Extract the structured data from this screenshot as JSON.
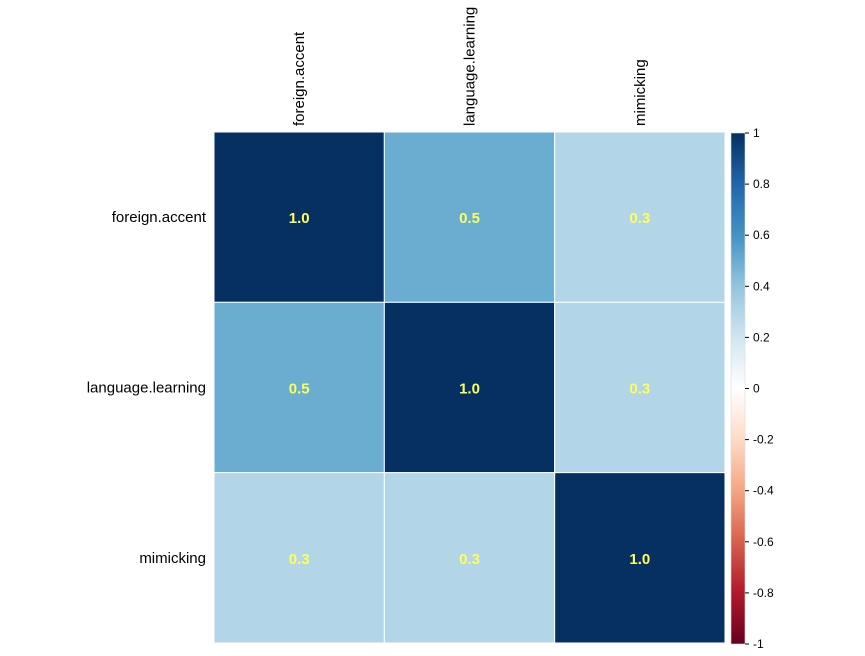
{
  "chart_data": {
    "type": "heatmap",
    "variables": [
      "foreign.accent",
      "language.learning",
      "mimicking"
    ],
    "matrix": [
      [
        1.0,
        0.5,
        0.3
      ],
      [
        0.5,
        1.0,
        0.3
      ],
      [
        0.3,
        0.3,
        1.0
      ]
    ],
    "cell_labels": [
      [
        "1.0",
        "0.5",
        "0.3"
      ],
      [
        "0.5",
        "1.0",
        "0.3"
      ],
      [
        "0.3",
        "0.3",
        "1.0"
      ]
    ],
    "value_range": [
      -1,
      1
    ],
    "legend": {
      "placement": "right",
      "ticks": [
        "1",
        "0.8",
        "0.6",
        "0.4",
        "0.2",
        "0",
        "-0.2",
        "-0.4",
        "-0.6",
        "-0.8",
        "-1"
      ]
    },
    "colors": {
      "scale": [
        "#67001F",
        "#B2182B",
        "#D6604D",
        "#F4A582",
        "#FDDBC7",
        "#FFFFFF",
        "#D1E5F0",
        "#92C5DE",
        "#4393C3",
        "#2166AC",
        "#053061"
      ],
      "cell_text": "#FFFF55",
      "grid": "#FFFFFF"
    }
  }
}
